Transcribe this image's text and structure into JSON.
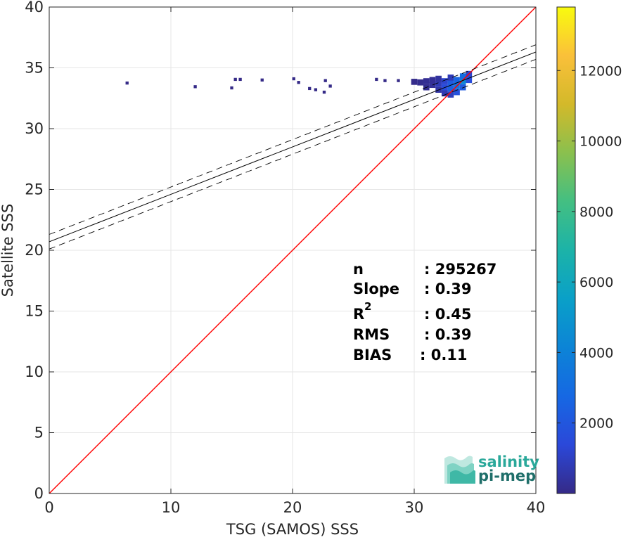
{
  "chart_data": {
    "type": "scatter",
    "subtype": "2d-density-histogram",
    "xlabel": "TSG (SAMOS) SSS",
    "ylabel": "Satellite SSS",
    "xlim": [
      0,
      40
    ],
    "ylim": [
      0,
      40
    ],
    "x_ticks": [
      "0",
      "10",
      "20",
      "30",
      "40"
    ],
    "y_ticks": [
      "0",
      "5",
      "10",
      "15",
      "20",
      "25",
      "30",
      "35",
      "40"
    ],
    "grid": true,
    "identity_line": {
      "from": [
        0,
        0
      ],
      "to": [
        40,
        40
      ],
      "color": "#ff0000"
    },
    "regression_line": {
      "slope": 0.39,
      "intercept": 20.7,
      "color": "#000000"
    },
    "confidence_band": {
      "offset": 0.6,
      "style": "dashed"
    },
    "density_cells": [
      {
        "x": 6.4,
        "y": 33.75,
        "count": 1
      },
      {
        "x": 12.0,
        "y": 33.45,
        "count": 1
      },
      {
        "x": 15.0,
        "y": 33.35,
        "count": 1
      },
      {
        "x": 15.3,
        "y": 34.05,
        "count": 1
      },
      {
        "x": 15.7,
        "y": 34.05,
        "count": 1
      },
      {
        "x": 17.5,
        "y": 34.0,
        "count": 1
      },
      {
        "x": 20.1,
        "y": 34.1,
        "count": 1
      },
      {
        "x": 20.5,
        "y": 33.8,
        "count": 1
      },
      {
        "x": 21.4,
        "y": 33.3,
        "count": 1
      },
      {
        "x": 21.9,
        "y": 33.2,
        "count": 1
      },
      {
        "x": 22.6,
        "y": 33.0,
        "count": 1
      },
      {
        "x": 22.7,
        "y": 33.95,
        "count": 1
      },
      {
        "x": 23.1,
        "y": 33.5,
        "count": 1
      },
      {
        "x": 26.9,
        "y": 34.05,
        "count": 1
      },
      {
        "x": 27.6,
        "y": 33.95,
        "count": 1
      },
      {
        "x": 28.7,
        "y": 33.95,
        "count": 1
      },
      {
        "x": 30.0,
        "y": 33.85,
        "count": 60
      },
      {
        "x": 30.5,
        "y": 33.8,
        "count": 120
      },
      {
        "x": 31.0,
        "y": 33.9,
        "count": 200
      },
      {
        "x": 31.0,
        "y": 33.4,
        "count": 150
      },
      {
        "x": 31.5,
        "y": 33.6,
        "count": 300
      },
      {
        "x": 31.5,
        "y": 34.0,
        "count": 250
      },
      {
        "x": 32.0,
        "y": 33.2,
        "count": 500
      },
      {
        "x": 32.0,
        "y": 33.7,
        "count": 800
      },
      {
        "x": 32.0,
        "y": 34.1,
        "count": 400
      },
      {
        "x": 32.5,
        "y": 32.9,
        "count": 700
      },
      {
        "x": 32.5,
        "y": 33.4,
        "count": 1500
      },
      {
        "x": 32.5,
        "y": 33.9,
        "count": 1200
      },
      {
        "x": 33.0,
        "y": 32.8,
        "count": 900
      },
      {
        "x": 33.0,
        "y": 33.3,
        "count": 2500
      },
      {
        "x": 33.0,
        "y": 33.8,
        "count": 2200
      },
      {
        "x": 33.0,
        "y": 34.2,
        "count": 800
      },
      {
        "x": 33.5,
        "y": 33.0,
        "count": 1800
      },
      {
        "x": 33.5,
        "y": 33.5,
        "count": 3200
      },
      {
        "x": 33.5,
        "y": 34.0,
        "count": 2600
      },
      {
        "x": 34.0,
        "y": 33.4,
        "count": 2200
      },
      {
        "x": 34.0,
        "y": 33.9,
        "count": 4200
      },
      {
        "x": 34.0,
        "y": 34.3,
        "count": 3000
      },
      {
        "x": 34.5,
        "y": 34.5,
        "count": 1200
      },
      {
        "x": 34.5,
        "y": 34.0,
        "count": 1600
      }
    ],
    "colorbar": {
      "range": [
        0,
        13800
      ],
      "ticks": [
        "2000",
        "4000",
        "6000",
        "8000",
        "10000",
        "12000"
      ],
      "colormap": "parula"
    }
  },
  "stats": {
    "n_label": "n",
    "n_value": ": 295267",
    "slope_label": "Slope",
    "slope_value": ": 0.39",
    "r2_label": "R",
    "r2_sup": "2",
    "r2_value": ": 0.45",
    "rms_label": "RMS",
    "rms_value": ": 0.39",
    "bias_label": "BIAS",
    "bias_value": ": 0.11"
  },
  "logo": {
    "line1": "salinity",
    "line2": "pi-mep",
    "color_line1": "#2aa89a",
    "color_line2": "#1f6f6a"
  }
}
